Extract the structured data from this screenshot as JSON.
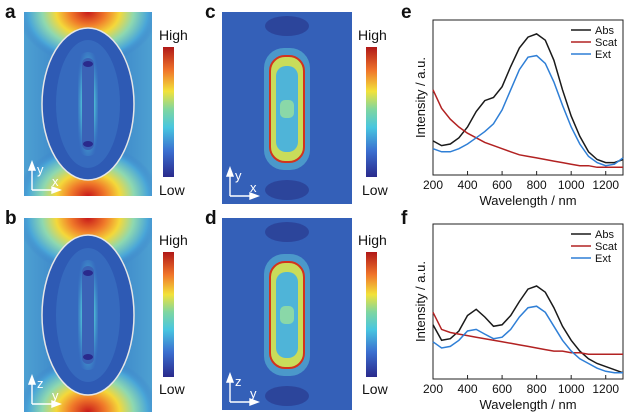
{
  "panels": {
    "a": {
      "label": "a",
      "axes": [
        "y",
        "x"
      ]
    },
    "b": {
      "label": "b",
      "axes": [
        "z",
        "y"
      ]
    },
    "c": {
      "label": "c",
      "axes": [
        "y",
        "x"
      ]
    },
    "d": {
      "label": "d",
      "axes": [
        "z",
        "y"
      ]
    },
    "e": {
      "label": "e"
    },
    "f": {
      "label": "f"
    }
  },
  "colorbar": {
    "high": "High",
    "low": "Low"
  },
  "colors": {
    "abs": "#1a1a1a",
    "scat": "#b22222",
    "ext": "#2f7fd6",
    "field_background": "#2e5fb8"
  },
  "chart_data": [
    {
      "type": "line",
      "panel": "e",
      "xlabel": "Wavelength / nm",
      "ylabel": "Intensity / a.u.",
      "xlim": [
        200,
        1300
      ],
      "ylim": [
        0,
        1
      ],
      "xticks": [
        200,
        400,
        600,
        800,
        1000,
        1200
      ],
      "yticks_shown": false,
      "legend_position": "top-right",
      "series": [
        {
          "name": "Abs",
          "color": "#1a1a1a",
          "x": [
            200,
            250,
            300,
            350,
            400,
            450,
            500,
            550,
            600,
            650,
            700,
            750,
            800,
            850,
            900,
            950,
            1000,
            1050,
            1100,
            1150,
            1200,
            1250,
            1300
          ],
          "y": [
            0.22,
            0.19,
            0.2,
            0.24,
            0.31,
            0.41,
            0.48,
            0.5,
            0.57,
            0.7,
            0.82,
            0.89,
            0.91,
            0.87,
            0.74,
            0.55,
            0.38,
            0.25,
            0.15,
            0.1,
            0.08,
            0.08,
            0.1
          ]
        },
        {
          "name": "Scat",
          "color": "#b22222",
          "x": [
            200,
            250,
            300,
            350,
            400,
            450,
            500,
            550,
            600,
            650,
            700,
            750,
            800,
            850,
            900,
            950,
            1000,
            1050,
            1100,
            1150,
            1200,
            1250,
            1300
          ],
          "y": [
            0.55,
            0.43,
            0.36,
            0.31,
            0.27,
            0.24,
            0.21,
            0.19,
            0.17,
            0.15,
            0.13,
            0.12,
            0.11,
            0.1,
            0.09,
            0.08,
            0.07,
            0.06,
            0.06,
            0.05,
            0.05,
            0.05,
            0.05
          ]
        },
        {
          "name": "Ext",
          "color": "#2f7fd6",
          "x": [
            200,
            250,
            300,
            350,
            400,
            450,
            500,
            550,
            600,
            650,
            700,
            750,
            800,
            850,
            900,
            950,
            1000,
            1050,
            1100,
            1150,
            1200,
            1250,
            1300
          ],
          "y": [
            0.17,
            0.15,
            0.15,
            0.17,
            0.2,
            0.24,
            0.28,
            0.33,
            0.42,
            0.55,
            0.68,
            0.76,
            0.77,
            0.72,
            0.6,
            0.45,
            0.31,
            0.2,
            0.12,
            0.08,
            0.06,
            0.07,
            0.11
          ]
        }
      ]
    },
    {
      "type": "line",
      "panel": "f",
      "xlabel": "Wavelength / nm",
      "ylabel": "Intensity / a.u.",
      "xlim": [
        200,
        1300
      ],
      "ylim": [
        0,
        1
      ],
      "xticks": [
        200,
        400,
        600,
        800,
        1000,
        1200
      ],
      "yticks_shown": false,
      "legend_position": "top-right",
      "series": [
        {
          "name": "Abs",
          "color": "#1a1a1a",
          "x": [
            200,
            250,
            300,
            350,
            400,
            450,
            500,
            550,
            600,
            650,
            700,
            750,
            800,
            850,
            900,
            950,
            1000,
            1050,
            1100,
            1150,
            1200,
            1250,
            1300
          ],
          "y": [
            0.35,
            0.25,
            0.26,
            0.31,
            0.41,
            0.45,
            0.4,
            0.34,
            0.35,
            0.41,
            0.5,
            0.58,
            0.6,
            0.56,
            0.46,
            0.34,
            0.25,
            0.18,
            0.13,
            0.1,
            0.08,
            0.06,
            0.04
          ]
        },
        {
          "name": "Scat",
          "color": "#b22222",
          "x": [
            200,
            250,
            300,
            350,
            400,
            450,
            500,
            550,
            600,
            650,
            700,
            750,
            800,
            850,
            900,
            950,
            1000,
            1050,
            1100,
            1150,
            1200,
            1250,
            1300
          ],
          "y": [
            0.43,
            0.32,
            0.3,
            0.29,
            0.28,
            0.27,
            0.26,
            0.25,
            0.24,
            0.23,
            0.22,
            0.21,
            0.2,
            0.19,
            0.18,
            0.18,
            0.17,
            0.17,
            0.16,
            0.16,
            0.16,
            0.16,
            0.16
          ]
        },
        {
          "name": "Ext",
          "color": "#2f7fd6",
          "x": [
            200,
            250,
            300,
            350,
            400,
            450,
            500,
            550,
            600,
            650,
            700,
            750,
            800,
            850,
            900,
            950,
            1000,
            1050,
            1100,
            1150,
            1200,
            1250,
            1300
          ],
          "y": [
            0.24,
            0.2,
            0.21,
            0.25,
            0.31,
            0.32,
            0.29,
            0.26,
            0.27,
            0.32,
            0.4,
            0.46,
            0.47,
            0.43,
            0.34,
            0.25,
            0.18,
            0.13,
            0.1,
            0.07,
            0.05,
            0.04,
            0.04
          ]
        }
      ]
    }
  ]
}
